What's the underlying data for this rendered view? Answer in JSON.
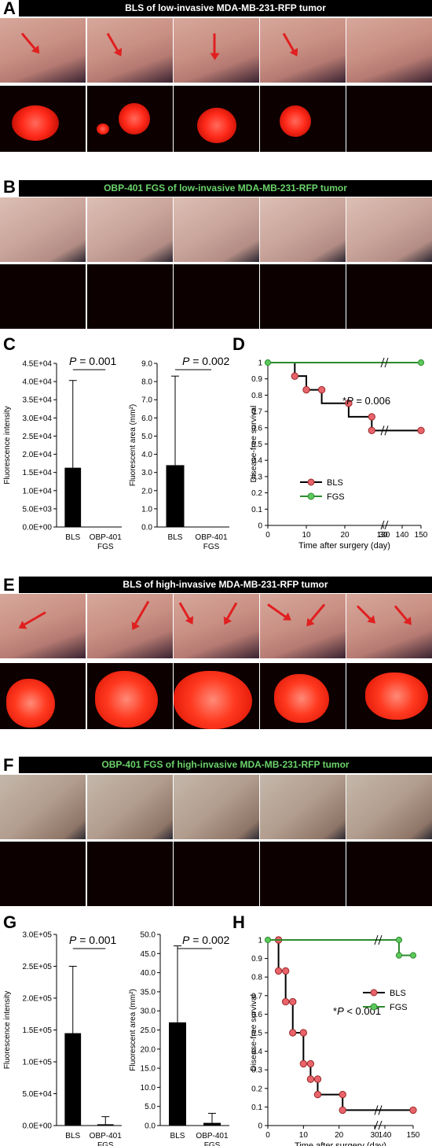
{
  "panels": {
    "A": {
      "letter": "A",
      "title": "BLS of low-invasive MDA-MB-231-RFP tumor"
    },
    "B": {
      "letter": "B",
      "title": "OBP-401 FGS of low-invasive MDA-MB-231-RFP tumor"
    },
    "C": {
      "letter": "C"
    },
    "D": {
      "letter": "D"
    },
    "E": {
      "letter": "E",
      "title": "BLS of high-invasive MDA-MB-231-RFP tumor"
    },
    "F": {
      "letter": "F",
      "title": "OBP-401 FGS of high-invasive MDA-MB-231-RFP tumor"
    },
    "G": {
      "letter": "G"
    },
    "H": {
      "letter": "H"
    }
  },
  "colors": {
    "bls": "#e8636a",
    "fgs": "#5cc85c",
    "fgs_line": "#2e8b2e",
    "bar_fill": "#000000",
    "green_title": "#6bd36b"
  },
  "chart_data": [
    {
      "id": "C1",
      "type": "bar",
      "categories": [
        "BLS",
        "OBP-401\nFGS"
      ],
      "values": [
        16300,
        0
      ],
      "errors": [
        24000,
        0
      ],
      "ylabel": "Fluorescence intensity",
      "ylim": [
        0,
        45000
      ],
      "ticks": [
        "0.0E+00",
        "5.0E+03",
        "1.0E+04",
        "1.5E+04",
        "2.0E+04",
        "2.5E+04",
        "3.0E+04",
        "3.5E+04",
        "4.0E+04",
        "4.5E+04"
      ],
      "annotation": "P = 0.001"
    },
    {
      "id": "C2",
      "type": "bar",
      "categories": [
        "BLS",
        "OBP-401\nFGS"
      ],
      "values": [
        3.4,
        0
      ],
      "errors": [
        4.9,
        0
      ],
      "ylabel": "Fluorescent area (mm²)",
      "ylim": [
        0,
        9
      ],
      "ticks": [
        "0.0",
        "1.0",
        "2.0",
        "3.0",
        "4.0",
        "5.0",
        "6.0",
        "7.0",
        "8.0",
        "9.0"
      ],
      "annotation": "P = 0.002"
    },
    {
      "id": "D",
      "type": "line",
      "ylabel": "Disease-free survival",
      "xlabel": "Time after surgery (day)",
      "yticks": [
        "0",
        "0.1",
        "0.2",
        "0.3",
        "0.4",
        "0.5",
        "0.6",
        "0.7",
        "0.8",
        "0.9",
        "1"
      ],
      "xticks": [
        "0",
        "10",
        "20",
        "30",
        "130",
        "140",
        "150"
      ],
      "annotation": "*P = 0.006",
      "series": [
        {
          "name": "BLS",
          "points": [
            [
              7,
              1
            ],
            [
              7,
              0.917
            ],
            [
              10,
              0.917
            ],
            [
              10,
              0.833
            ],
            [
              14,
              0.833
            ],
            [
              14,
              0.75
            ],
            [
              21,
              0.75
            ],
            [
              21,
              0.667
            ],
            [
              27,
              0.667
            ],
            [
              27,
              0.583
            ],
            [
              150,
              0.583
            ]
          ],
          "markers": [
            [
              7,
              0.917
            ],
            [
              10,
              0.833
            ],
            [
              14,
              0.833
            ],
            [
              21,
              0.75
            ],
            [
              27,
              0.667
            ],
            [
              27,
              0.583
            ],
            [
              150,
              0.583
            ]
          ]
        },
        {
          "name": "FGS",
          "points": [
            [
              0,
              1
            ],
            [
              150,
              1
            ]
          ],
          "markers": [
            [
              0,
              1
            ],
            [
              150,
              1
            ]
          ]
        }
      ]
    },
    {
      "id": "G1",
      "type": "bar",
      "categories": [
        "BLS",
        "OBP-401\nFGS"
      ],
      "values": [
        145000,
        2000
      ],
      "errors": [
        105000,
        12000
      ],
      "ylabel": "Fluorescence intensity",
      "ylim": [
        0,
        300000
      ],
      "ticks": [
        "0.0E+00",
        "5.0E+04",
        "1.0E+05",
        "1.5E+05",
        "2.0E+05",
        "2.5E+05",
        "3.0E+05"
      ],
      "annotation": "P = 0.001"
    },
    {
      "id": "G2",
      "type": "bar",
      "categories": [
        "BLS",
        "OBP-401\nFGS"
      ],
      "values": [
        27,
        0.7
      ],
      "errors": [
        20,
        2.5
      ],
      "ylabel": "Fluorescent area (mm²)",
      "ylim": [
        0,
        50
      ],
      "ticks": [
        "0.0",
        "5.0",
        "10.0",
        "15.0",
        "20.0",
        "25.0",
        "30.0",
        "35.0",
        "40.0",
        "45.0",
        "50.0"
      ],
      "annotation": "P = 0.002"
    },
    {
      "id": "H",
      "type": "line",
      "ylabel": "Disease-free survival",
      "xlabel": "Time after surgery (day)",
      "yticks": [
        "0",
        "0.1",
        "0.2",
        "0.3",
        "0.4",
        "0.5",
        "0.6",
        "0.7",
        "0.8",
        "0.9",
        "1"
      ],
      "xticks": [
        "0",
        "10",
        "20",
        "30",
        "140",
        "150"
      ],
      "annotation": "*P < 0.001",
      "series": [
        {
          "name": "BLS",
          "points": [
            [
              3,
              1
            ],
            [
              3,
              0.833
            ],
            [
              5,
              0.833
            ],
            [
              5,
              0.667
            ],
            [
              7,
              0.667
            ],
            [
              7,
              0.5
            ],
            [
              10,
              0.5
            ],
            [
              10,
              0.333
            ],
            [
              12,
              0.333
            ],
            [
              12,
              0.25
            ],
            [
              14,
              0.25
            ],
            [
              14,
              0.167
            ],
            [
              21,
              0.167
            ],
            [
              21,
              0.083
            ],
            [
              150,
              0.083
            ]
          ],
          "markers": [
            [
              3,
              1
            ],
            [
              3,
              0.833
            ],
            [
              5,
              0.833
            ],
            [
              5,
              0.667
            ],
            [
              7,
              0.667
            ],
            [
              7,
              0.5
            ],
            [
              10,
              0.5
            ],
            [
              10,
              0.333
            ],
            [
              12,
              0.333
            ],
            [
              12,
              0.25
            ],
            [
              14,
              0.25
            ],
            [
              14,
              0.167
            ],
            [
              21,
              0.167
            ],
            [
              21,
              0.083
            ],
            [
              150,
              0.083
            ]
          ]
        },
        {
          "name": "FGS",
          "points": [
            [
              0,
              1
            ],
            [
              145,
              1
            ],
            [
              145,
              0.917
            ],
            [
              150,
              0.917
            ]
          ],
          "markers": [
            [
              0,
              1
            ],
            [
              145,
              1
            ],
            [
              145,
              0.917
            ],
            [
              150,
              0.917
            ]
          ]
        }
      ]
    }
  ]
}
